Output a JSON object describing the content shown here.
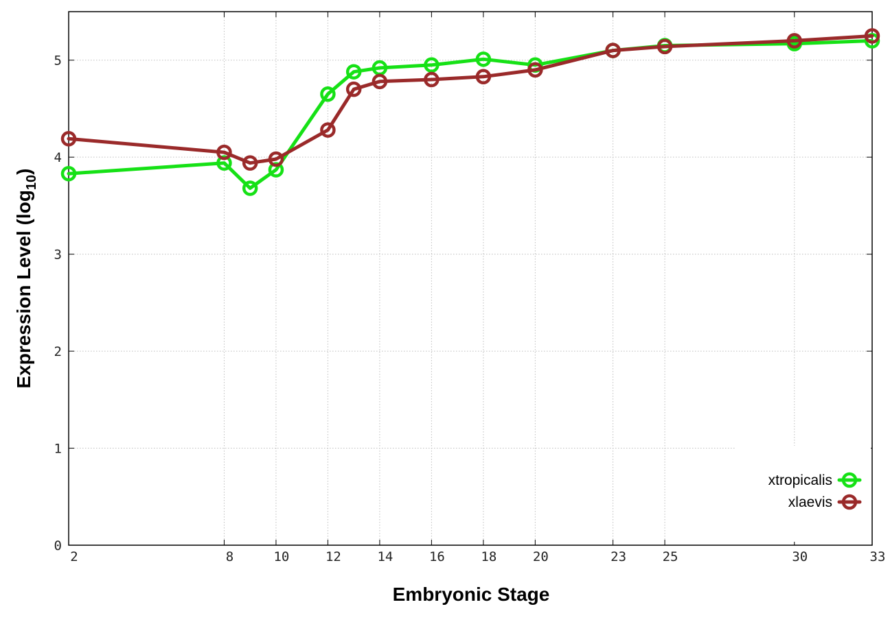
{
  "chart_data": {
    "type": "line",
    "title": "",
    "xlabel": "Embryonic Stage",
    "ylabel_main": "Expression Level (log",
    "ylabel_sub": "10",
    "ylabel_close": ")",
    "xlim": [
      2,
      33
    ],
    "ylim": [
      0,
      5.5
    ],
    "grid": true,
    "legend_position": "bottom-right",
    "x_ticks": [
      2,
      8,
      10,
      12,
      14,
      16,
      18,
      20,
      23,
      25,
      30,
      33
    ],
    "y_ticks": [
      0,
      1,
      2,
      3,
      4,
      5
    ],
    "x_tick_labels": [
      "2",
      "8",
      "10",
      "12",
      "14",
      "16",
      "18",
      "20",
      "23",
      "25",
      "30",
      "33"
    ],
    "y_tick_labels": [
      "0",
      "1",
      "2",
      "3",
      "4",
      "5"
    ],
    "series": [
      {
        "name": "xtropicalis",
        "color": "#16e116",
        "x": [
          2,
          8,
          9,
          10,
          12,
          13,
          14,
          16,
          18,
          20,
          23,
          25,
          30,
          33
        ],
        "values": [
          3.83,
          3.94,
          3.68,
          3.87,
          4.65,
          4.88,
          4.92,
          4.95,
          5.01,
          4.95,
          5.1,
          5.15,
          5.17,
          5.2
        ]
      },
      {
        "name": "xlaevis",
        "color": "#9a2a2a",
        "x": [
          2,
          8,
          9,
          10,
          12,
          13,
          14,
          16,
          18,
          20,
          23,
          25,
          30,
          33
        ],
        "values": [
          4.19,
          4.05,
          3.94,
          3.98,
          4.28,
          4.7,
          4.78,
          4.8,
          4.83,
          4.9,
          5.1,
          5.14,
          5.2,
          5.25
        ]
      }
    ]
  }
}
